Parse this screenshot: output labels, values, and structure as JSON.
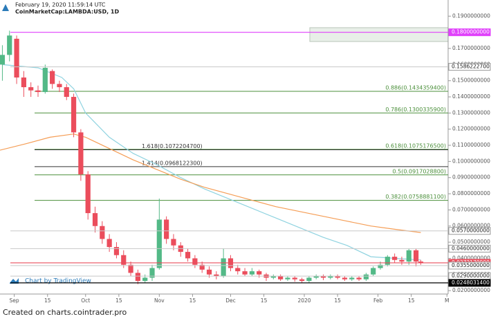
{
  "chart_data": {
    "type": "candlestick",
    "title": "February 19, 2020 11:59:14 UTC",
    "subtitle": "CoinMarketCap:LAMBDA:USD, 1D",
    "watermark": "Chart by TradingView",
    "up_color": "#53b987",
    "down_color": "#eb4d5c",
    "x": [
      -5,
      -2,
      1,
      4,
      7,
      10,
      13,
      16,
      19,
      22,
      25,
      28,
      31,
      34,
      37,
      40,
      43,
      46,
      49,
      52,
      55,
      58,
      61,
      64,
      67,
      70,
      73,
      76,
      79,
      82,
      85,
      88,
      91,
      94,
      97,
      100,
      103,
      106,
      109,
      112,
      115,
      118,
      121,
      124,
      127,
      130,
      133,
      136,
      139,
      142,
      145,
      148,
      151,
      154,
      157,
      160,
      163,
      166,
      169,
      171
    ],
    "open": [
      0.16,
      0.166,
      0.176,
      0.152,
      0.146,
      0.144,
      0.143,
      0.156,
      0.148,
      0.146,
      0.14,
      0.118,
      0.092,
      0.068,
      0.06,
      0.052,
      0.047,
      0.042,
      0.036,
      0.031,
      0.026,
      0.028,
      0.034,
      0.064,
      0.052,
      0.048,
      0.044,
      0.04,
      0.036,
      0.033,
      0.03,
      0.029,
      0.04,
      0.034,
      0.032,
      0.03,
      0.032,
      0.03,
      0.028,
      0.029,
      0.027,
      0.028,
      0.027,
      0.026,
      0.028,
      0.029,
      0.028,
      0.029,
      0.028,
      0.027,
      0.028,
      0.027,
      0.03,
      0.034,
      0.036,
      0.041,
      0.039,
      0.038,
      0.045,
      0.038
    ],
    "high": [
      0.172,
      0.181,
      0.178,
      0.156,
      0.149,
      0.147,
      0.16,
      0.157,
      0.15,
      0.148,
      0.142,
      0.12,
      0.094,
      0.072,
      0.063,
      0.055,
      0.05,
      0.045,
      0.038,
      0.033,
      0.03,
      0.036,
      0.077,
      0.066,
      0.055,
      0.05,
      0.046,
      0.042,
      0.038,
      0.035,
      0.032,
      0.046,
      0.042,
      0.036,
      0.034,
      0.034,
      0.033,
      0.031,
      0.03,
      0.03,
      0.029,
      0.029,
      0.028,
      0.029,
      0.03,
      0.03,
      0.03,
      0.03,
      0.029,
      0.029,
      0.029,
      0.031,
      0.035,
      0.038,
      0.042,
      0.043,
      0.041,
      0.046,
      0.046,
      0.039
    ],
    "low": [
      0.15,
      0.162,
      0.148,
      0.14,
      0.14,
      0.14,
      0.142,
      0.145,
      0.143,
      0.138,
      0.115,
      0.088,
      0.064,
      0.056,
      0.049,
      0.044,
      0.04,
      0.034,
      0.029,
      0.024,
      0.025,
      0.026,
      0.033,
      0.049,
      0.045,
      0.041,
      0.038,
      0.034,
      0.031,
      0.028,
      0.027,
      0.028,
      0.032,
      0.03,
      0.029,
      0.029,
      0.028,
      0.026,
      0.027,
      0.026,
      0.026,
      0.0255,
      0.025,
      0.025,
      0.027,
      0.0265,
      0.027,
      0.027,
      0.026,
      0.026,
      0.026,
      0.026,
      0.029,
      0.033,
      0.035,
      0.037,
      0.036,
      0.036,
      0.035,
      0.036
    ],
    "close": [
      0.166,
      0.178,
      0.152,
      0.146,
      0.144,
      0.143,
      0.158,
      0.148,
      0.146,
      0.14,
      0.118,
      0.092,
      0.068,
      0.06,
      0.052,
      0.047,
      0.042,
      0.036,
      0.031,
      0.026,
      0.028,
      0.034,
      0.064,
      0.052,
      0.048,
      0.044,
      0.04,
      0.036,
      0.033,
      0.03,
      0.029,
      0.04,
      0.034,
      0.032,
      0.03,
      0.032,
      0.03,
      0.028,
      0.029,
      0.027,
      0.028,
      0.027,
      0.026,
      0.028,
      0.029,
      0.028,
      0.029,
      0.028,
      0.027,
      0.028,
      0.027,
      0.03,
      0.034,
      0.036,
      0.041,
      0.039,
      0.038,
      0.045,
      0.038,
      0.03721709
    ],
    "overlays": [
      {
        "color": "#8fd3e0",
        "x": [
          -5,
          10,
          20,
          25,
          30,
          40,
          50,
          60,
          70,
          80,
          90,
          100,
          110,
          120,
          130,
          140,
          150,
          160,
          171
        ],
        "values": [
          0.16,
          0.158,
          0.152,
          0.145,
          0.13,
          0.115,
          0.105,
          0.098,
          0.09,
          0.083,
          0.077,
          0.071,
          0.065,
          0.059,
          0.053,
          0.048,
          0.041,
          0.04,
          0.039
        ]
      },
      {
        "color": "#f59d55",
        "x": [
          -6,
          5,
          15,
          25,
          30,
          40,
          50,
          60,
          70,
          80,
          90,
          100,
          110,
          120,
          130,
          140,
          150,
          160,
          171
        ],
        "values": [
          0.107,
          0.111,
          0.115,
          0.117,
          0.115,
          0.108,
          0.101,
          0.095,
          0.089,
          0.084,
          0.08,
          0.076,
          0.072,
          0.069,
          0.066,
          0.063,
          0.06,
          0.058,
          0.056
        ]
      }
    ],
    "retracements": {
      "color": "#4a8f3a",
      "levels": [
        {
          "value": 0.14343594,
          "label": "0.886(0.1434359400)"
        },
        {
          "value": 0.13003359,
          "label": "0.786(0.1300335900)"
        },
        {
          "value": 0.10751765,
          "label": "0.618(0.1075176500)"
        },
        {
          "value": 0.09170288,
          "label": "0.5(0.0917028800)"
        },
        {
          "value": 0.07588811,
          "label": "0.382(0.0758881100)"
        }
      ]
    },
    "extensions": {
      "color": "#333333",
      "levels": [
        {
          "value": 0.10722047,
          "label": "1.618(0.1072204700)"
        },
        {
          "value": 0.09681223,
          "label": "1.414(0.0968122300)"
        }
      ]
    },
    "levels": [
      {
        "value": 0.18,
        "label": "0.1800000000",
        "color": "#e040fb"
      },
      {
        "value": 0.15862227,
        "label": "0.1586222700",
        "color": "#ffffff"
      },
      {
        "value": 0.057,
        "label": "0.0570000000",
        "color": "#ffffff"
      },
      {
        "value": 0.046,
        "label": "0.0460000000",
        "color": "#ffffff"
      },
      {
        "value": 0.03721709,
        "label": "0.0372170900",
        "color": "#eb4d5c"
      },
      {
        "value": 0.0355,
        "label": "0.0355000000",
        "color": "#ffffff"
      },
      {
        "value": 0.029,
        "label": "0.0290000000",
        "color": "#ffffff"
      },
      {
        "value": 0.02480314,
        "label": "0.0248031400",
        "color": "#000000"
      }
    ],
    "xlim": [
      -6,
      182.5
    ],
    "xticks": [
      {
        "value": 0,
        "label": "Sep"
      },
      {
        "value": 14,
        "label": "15"
      },
      {
        "value": 30,
        "label": "Oct"
      },
      {
        "value": 44,
        "label": "15"
      },
      {
        "value": 61,
        "label": "Nov"
      },
      {
        "value": 75,
        "label": "15"
      },
      {
        "value": 91,
        "label": "Dec"
      },
      {
        "value": 105,
        "label": "15"
      },
      {
        "value": 122,
        "label": "2020"
      },
      {
        "value": 136,
        "label": "15"
      },
      {
        "value": 153,
        "label": "Feb"
      },
      {
        "value": 167,
        "label": "15"
      },
      {
        "value": 182,
        "label": "M"
      }
    ],
    "ylim": [
      0.0179,
      0.2
    ],
    "yticks": [
      {
        "value": 0.02,
        "label": "0.0200000000"
      },
      {
        "value": 0.03,
        "label": "0.0300000000"
      },
      {
        "value": 0.04,
        "label": "0.0400000000"
      },
      {
        "value": 0.05,
        "label": "0.0500000000"
      },
      {
        "value": 0.06,
        "label": "0.0600000000"
      },
      {
        "value": 0.07,
        "label": "0.0700000000"
      },
      {
        "value": 0.08,
        "label": "0.0800000000"
      },
      {
        "value": 0.09,
        "label": "0.0900000000"
      },
      {
        "value": 0.1,
        "label": "0.1000000000"
      },
      {
        "value": 0.11,
        "label": "0.1100000000"
      },
      {
        "value": 0.12,
        "label": "0.1200000000"
      },
      {
        "value": 0.13,
        "label": "0.1300000000"
      },
      {
        "value": 0.14,
        "label": "0.1400000000"
      },
      {
        "value": 0.15,
        "label": "0.1500000000"
      },
      {
        "value": 0.16,
        "label": "0.1600000000"
      },
      {
        "value": 0.17,
        "label": "0.1700000000"
      },
      {
        "value": 0.18,
        "label": "0.1800000000"
      },
      {
        "value": 0.19,
        "label": "0.1900000000"
      }
    ],
    "grid": false
  },
  "footer": "Created on charts.cointrader.pro"
}
